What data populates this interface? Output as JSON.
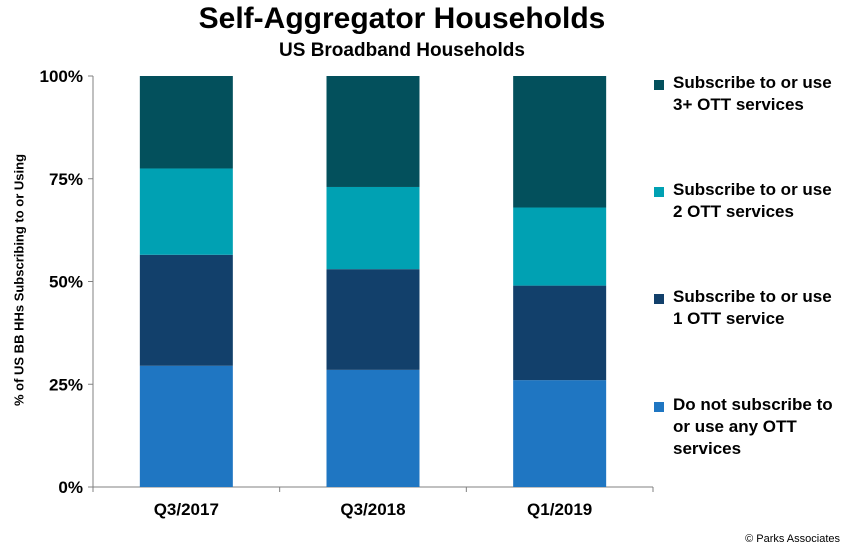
{
  "chart_data": {
    "type": "bar",
    "stacked": true,
    "title": "Self-Aggregator Households",
    "subtitle": "US Broadband Households",
    "ylabel": "% of US BB HHs Subscribing to or Using",
    "xlabel": "",
    "ylim": [
      0,
      100
    ],
    "yticks": [
      "0%",
      "25%",
      "50%",
      "75%",
      "100%"
    ],
    "categories": [
      "Q3/2017",
      "Q3/2018",
      "Q1/2019"
    ],
    "series": [
      {
        "name": "Do not subscribe to or use any OTT services",
        "color": "#1f76c2",
        "values": [
          29.5,
          28.5,
          26
        ]
      },
      {
        "name": "Subscribe to or use 1 OTT service",
        "color": "#12406b",
        "values": [
          27,
          24.5,
          23
        ]
      },
      {
        "name": "Subscribe to or use 2 OTT services",
        "color": "#00a1b3",
        "values": [
          21,
          20,
          19
        ]
      },
      {
        "name": "Subscribe to or use 3+ OTT services",
        "color": "#03505c",
        "values": [
          22.5,
          27,
          32
        ]
      }
    ],
    "legend_position": "right",
    "grid": false
  },
  "copyright": "© Parks Associates"
}
